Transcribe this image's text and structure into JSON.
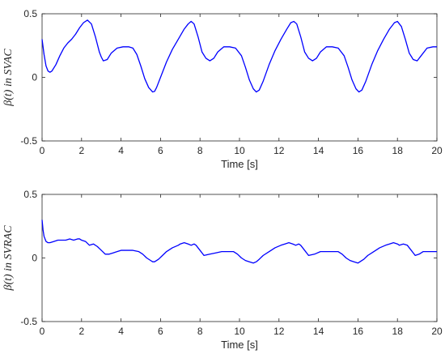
{
  "chart_data": [
    {
      "type": "line",
      "xlabel": "Time [s]",
      "ylabel": "β(t) in SVAC",
      "xlim": [
        0,
        20
      ],
      "ylim": [
        -0.5,
        0.5
      ],
      "xticks": [
        0,
        2,
        4,
        6,
        8,
        10,
        12,
        14,
        16,
        18,
        20
      ],
      "yticks": [
        -0.5,
        0,
        0.5
      ],
      "grid": false,
      "color": "#0000ff",
      "x": [
        0,
        0.1,
        0.2,
        0.3,
        0.4,
        0.5,
        0.7,
        0.9,
        1.1,
        1.3,
        1.5,
        1.7,
        1.9,
        2.1,
        2.3,
        2.5,
        2.7,
        2.9,
        3.0,
        3.1,
        3.3,
        3.5,
        3.8,
        4.1,
        4.4,
        4.6,
        4.8,
        5.0,
        5.2,
        5.4,
        5.6,
        5.7,
        5.8,
        6.0,
        6.3,
        6.6,
        6.9,
        7.2,
        7.4,
        7.55,
        7.7,
        7.9,
        8.1,
        8.3,
        8.5,
        8.7,
        8.9,
        9.2,
        9.5,
        9.8,
        10.1,
        10.3,
        10.5,
        10.7,
        10.85,
        11.0,
        11.2,
        11.5,
        11.8,
        12.1,
        12.4,
        12.6,
        12.75,
        12.9,
        13.1,
        13.3,
        13.5,
        13.7,
        13.9,
        14.1,
        14.4,
        14.7,
        15.0,
        15.3,
        15.5,
        15.7,
        15.9,
        16.05,
        16.2,
        16.4,
        16.7,
        17.0,
        17.3,
        17.6,
        17.85,
        18.0,
        18.2,
        18.4,
        18.6,
        18.8,
        19.0,
        19.2,
        19.5,
        19.8,
        20.0
      ],
      "y": [
        0.3,
        0.18,
        0.09,
        0.05,
        0.04,
        0.05,
        0.1,
        0.17,
        0.23,
        0.27,
        0.3,
        0.34,
        0.39,
        0.43,
        0.45,
        0.42,
        0.32,
        0.2,
        0.16,
        0.13,
        0.14,
        0.19,
        0.23,
        0.24,
        0.24,
        0.23,
        0.18,
        0.09,
        -0.01,
        -0.08,
        -0.115,
        -0.11,
        -0.08,
        0.0,
        0.12,
        0.22,
        0.3,
        0.38,
        0.42,
        0.44,
        0.42,
        0.32,
        0.2,
        0.15,
        0.13,
        0.15,
        0.2,
        0.24,
        0.24,
        0.23,
        0.17,
        0.08,
        -0.02,
        -0.09,
        -0.115,
        -0.1,
        -0.03,
        0.1,
        0.21,
        0.3,
        0.38,
        0.43,
        0.44,
        0.42,
        0.32,
        0.2,
        0.15,
        0.13,
        0.15,
        0.2,
        0.24,
        0.24,
        0.23,
        0.17,
        0.08,
        -0.02,
        -0.09,
        -0.115,
        -0.1,
        -0.03,
        0.1,
        0.21,
        0.3,
        0.38,
        0.43,
        0.44,
        0.4,
        0.3,
        0.19,
        0.14,
        0.13,
        0.17,
        0.23,
        0.24,
        0.24
      ]
    },
    {
      "type": "line",
      "xlabel": "Time [s]",
      "ylabel": "β(t) in SVRAC",
      "xlim": [
        0,
        20
      ],
      "ylim": [
        -0.5,
        0.5
      ],
      "xticks": [
        0,
        2,
        4,
        6,
        8,
        10,
        12,
        14,
        16,
        18,
        20
      ],
      "yticks": [
        -0.5,
        0,
        0.5
      ],
      "grid": false,
      "color": "#0000ff",
      "x": [
        0,
        0.05,
        0.1,
        0.2,
        0.3,
        0.4,
        0.6,
        0.8,
        1.0,
        1.2,
        1.4,
        1.6,
        1.8,
        1.9,
        2.0,
        2.2,
        2.4,
        2.6,
        2.8,
        3.0,
        3.2,
        3.4,
        3.6,
        3.8,
        4.0,
        4.3,
        4.6,
        4.9,
        5.1,
        5.3,
        5.5,
        5.6,
        5.7,
        5.9,
        6.1,
        6.3,
        6.6,
        6.9,
        7.0,
        7.2,
        7.4,
        7.55,
        7.7,
        7.8,
        8.0,
        8.2,
        8.5,
        8.8,
        9.1,
        9.4,
        9.7,
        9.9,
        10.1,
        10.3,
        10.5,
        10.7,
        10.85,
        11.0,
        11.2,
        11.5,
        11.8,
        12.1,
        12.3,
        12.5,
        12.7,
        12.85,
        13.0,
        13.1,
        13.3,
        13.5,
        13.8,
        14.1,
        14.4,
        14.7,
        15.0,
        15.2,
        15.4,
        15.6,
        15.8,
        16.0,
        16.1,
        16.3,
        16.5,
        16.8,
        17.1,
        17.4,
        17.6,
        17.8,
        18.0,
        18.1,
        18.3,
        18.5,
        18.7,
        18.9,
        19.1,
        19.3,
        19.6,
        19.8,
        20.0
      ],
      "y": [
        0.3,
        0.22,
        0.17,
        0.13,
        0.12,
        0.12,
        0.13,
        0.14,
        0.14,
        0.14,
        0.15,
        0.14,
        0.15,
        0.15,
        0.14,
        0.13,
        0.1,
        0.11,
        0.09,
        0.06,
        0.03,
        0.03,
        0.04,
        0.05,
        0.06,
        0.06,
        0.06,
        0.05,
        0.03,
        0.0,
        -0.02,
        -0.03,
        -0.03,
        -0.01,
        0.02,
        0.05,
        0.08,
        0.1,
        0.11,
        0.12,
        0.11,
        0.1,
        0.11,
        0.1,
        0.06,
        0.02,
        0.03,
        0.04,
        0.05,
        0.05,
        0.05,
        0.03,
        0.0,
        -0.02,
        -0.03,
        -0.04,
        -0.03,
        -0.01,
        0.02,
        0.05,
        0.08,
        0.1,
        0.11,
        0.12,
        0.11,
        0.1,
        0.11,
        0.1,
        0.06,
        0.02,
        0.03,
        0.05,
        0.05,
        0.05,
        0.05,
        0.03,
        0.0,
        -0.02,
        -0.03,
        -0.04,
        -0.03,
        -0.01,
        0.02,
        0.05,
        0.08,
        0.1,
        0.11,
        0.12,
        0.11,
        0.1,
        0.11,
        0.1,
        0.06,
        0.02,
        0.03,
        0.05,
        0.05,
        0.05,
        0.05
      ]
    }
  ]
}
